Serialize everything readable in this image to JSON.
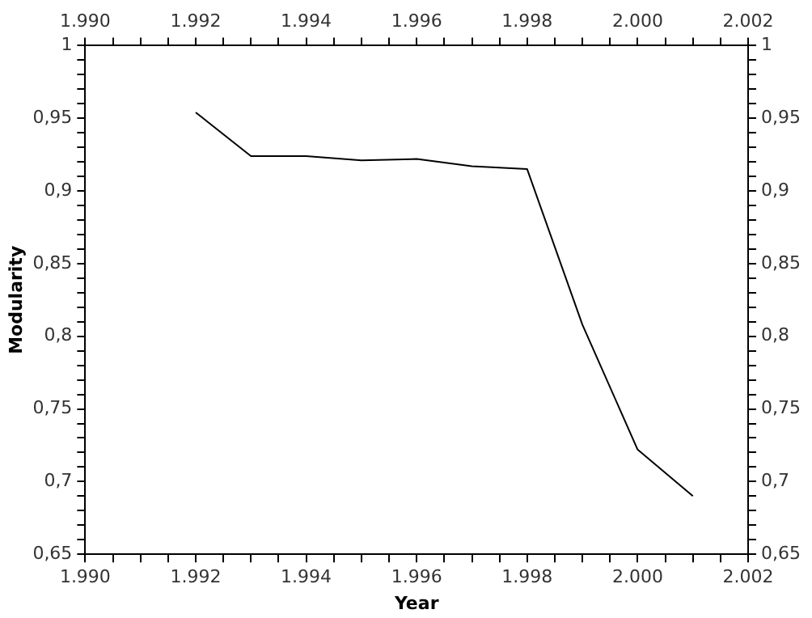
{
  "chart_data": {
    "type": "line",
    "xlabel": "Year",
    "ylabel": "Modularity",
    "x": [
      1992,
      1993,
      1994,
      1995,
      1996,
      1997,
      1998,
      1999,
      2000,
      2001
    ],
    "series": [
      {
        "color": "#000000",
        "values": [
          0.954,
          0.924,
          0.924,
          0.921,
          0.922,
          0.917,
          0.915,
          0.808,
          0.722,
          0.69
        ]
      }
    ],
    "marker": "none",
    "line_style": "solid",
    "legend": false,
    "xlim": [
      1990,
      2002
    ],
    "xticks": [
      {
        "value": 1990,
        "label": "1.990"
      },
      {
        "value": 1990.5,
        "label": null
      },
      {
        "value": 1991,
        "label": null
      },
      {
        "value": 1991.5,
        "label": null
      },
      {
        "value": 1992,
        "label": "1.992"
      },
      {
        "value": 1992.5,
        "label": null
      },
      {
        "value": 1993,
        "label": null
      },
      {
        "value": 1993.5,
        "label": null
      },
      {
        "value": 1994,
        "label": "1.994"
      },
      {
        "value": 1994.5,
        "label": null
      },
      {
        "value": 1995,
        "label": null
      },
      {
        "value": 1995.5,
        "label": null
      },
      {
        "value": 1996,
        "label": "1.996"
      },
      {
        "value": 1996.5,
        "label": null
      },
      {
        "value": 1997,
        "label": null
      },
      {
        "value": 1997.5,
        "label": null
      },
      {
        "value": 1998,
        "label": "1.998"
      },
      {
        "value": 1998.5,
        "label": null
      },
      {
        "value": 1999,
        "label": null
      },
      {
        "value": 1999.5,
        "label": null
      },
      {
        "value": 2000,
        "label": "2.000"
      },
      {
        "value": 2000.5,
        "label": null
      },
      {
        "value": 2001,
        "label": null
      },
      {
        "value": 2001.5,
        "label": null
      },
      {
        "value": 2002,
        "label": "2.002"
      }
    ],
    "x2lim": [
      1990,
      2002
    ],
    "x2ticks": [
      {
        "value": 1990,
        "label": "1.990"
      },
      {
        "value": 1990.5,
        "label": null
      },
      {
        "value": 1991,
        "label": null
      },
      {
        "value": 1991.5,
        "label": null
      },
      {
        "value": 1992,
        "label": "1.992"
      },
      {
        "value": 1992.5,
        "label": null
      },
      {
        "value": 1993,
        "label": null
      },
      {
        "value": 1993.5,
        "label": null
      },
      {
        "value": 1994,
        "label": "1.994"
      },
      {
        "value": 1994.5,
        "label": null
      },
      {
        "value": 1995,
        "label": null
      },
      {
        "value": 1995.5,
        "label": null
      },
      {
        "value": 1996,
        "label": "1.996"
      },
      {
        "value": 1996.5,
        "label": null
      },
      {
        "value": 1997,
        "label": null
      },
      {
        "value": 1997.5,
        "label": null
      },
      {
        "value": 1998,
        "label": "1.998"
      },
      {
        "value": 1998.5,
        "label": null
      },
      {
        "value": 1999,
        "label": null
      },
      {
        "value": 1999.5,
        "label": null
      },
      {
        "value": 2000,
        "label": "2.000"
      },
      {
        "value": 2000.5,
        "label": null
      },
      {
        "value": 2001,
        "label": null
      },
      {
        "value": 2001.5,
        "label": null
      },
      {
        "value": 2002,
        "label": "2.002"
      }
    ],
    "ylim": [
      0.65,
      1
    ],
    "yticks": [
      {
        "value": 0.65,
        "label": "0,65"
      },
      {
        "value": 0.66,
        "label": null
      },
      {
        "value": 0.67,
        "label": null
      },
      {
        "value": 0.68,
        "label": null
      },
      {
        "value": 0.69,
        "label": null
      },
      {
        "value": 0.7,
        "label": "0,7"
      },
      {
        "value": 0.71,
        "label": null
      },
      {
        "value": 0.72,
        "label": null
      },
      {
        "value": 0.73,
        "label": null
      },
      {
        "value": 0.74,
        "label": null
      },
      {
        "value": 0.75,
        "label": "0,75"
      },
      {
        "value": 0.76,
        "label": null
      },
      {
        "value": 0.77,
        "label": null
      },
      {
        "value": 0.78,
        "label": null
      },
      {
        "value": 0.79,
        "label": null
      },
      {
        "value": 0.8,
        "label": "0,8"
      },
      {
        "value": 0.81,
        "label": null
      },
      {
        "value": 0.82,
        "label": null
      },
      {
        "value": 0.83,
        "label": null
      },
      {
        "value": 0.84,
        "label": null
      },
      {
        "value": 0.85,
        "label": "0,85"
      },
      {
        "value": 0.86,
        "label": null
      },
      {
        "value": 0.87,
        "label": null
      },
      {
        "value": 0.88,
        "label": null
      },
      {
        "value": 0.89,
        "label": null
      },
      {
        "value": 0.9,
        "label": "0,9"
      },
      {
        "value": 0.91,
        "label": null
      },
      {
        "value": 0.92,
        "label": null
      },
      {
        "value": 0.93,
        "label": null
      },
      {
        "value": 0.94,
        "label": null
      },
      {
        "value": 0.95,
        "label": "0,95"
      },
      {
        "value": 0.96,
        "label": null
      },
      {
        "value": 0.97,
        "label": null
      },
      {
        "value": 0.98,
        "label": null
      },
      {
        "value": 0.99,
        "label": null
      },
      1
    ],
    "y2lim": [
      0.65,
      1
    ],
    "y2ticks": [
      {
        "value": 0.65,
        "label": "0,65"
      },
      {
        "value": 0.66,
        "label": null
      },
      {
        "value": 0.67,
        "label": null
      },
      {
        "value": 0.68,
        "label": null
      },
      {
        "value": 0.69,
        "label": null
      },
      {
        "value": 0.7,
        "label": "0,7"
      },
      {
        "value": 0.71,
        "label": null
      },
      {
        "value": 0.72,
        "label": null
      },
      {
        "value": 0.73,
        "label": null
      },
      {
        "value": 0.74,
        "label": null
      },
      {
        "value": 0.75,
        "label": "0,75"
      },
      {
        "value": 0.76,
        "label": null
      },
      {
        "value": 0.77,
        "label": null
      },
      {
        "value": 0.78,
        "label": null
      },
      {
        "value": 0.79,
        "label": null
      },
      {
        "value": 0.8,
        "label": "0,8"
      },
      {
        "value": 0.81,
        "label": null
      },
      {
        "value": 0.82,
        "label": null
      },
      {
        "value": 0.83,
        "label": null
      },
      {
        "value": 0.84,
        "label": null
      },
      {
        "value": 0.85,
        "label": "0,85"
      },
      {
        "value": 0.86,
        "label": null
      },
      {
        "value": 0.87,
        "label": null
      },
      {
        "value": 0.88,
        "label": null
      },
      {
        "value": 0.89,
        "label": null
      },
      {
        "value": 0.9,
        "label": "0,9"
      },
      {
        "value": 0.91,
        "label": null
      },
      {
        "value": 0.92,
        "label": null
      },
      {
        "value": 0.93,
        "label": null
      },
      {
        "value": 0.94,
        "label": null
      },
      {
        "value": 0.95,
        "label": "0,95"
      },
      {
        "value": 0.96,
        "label": null
      },
      {
        "value": 0.97,
        "label": null
      },
      {
        "value": 0.98,
        "label": null
      },
      {
        "value": 0.99,
        "label": null
      },
      1
    ]
  }
}
